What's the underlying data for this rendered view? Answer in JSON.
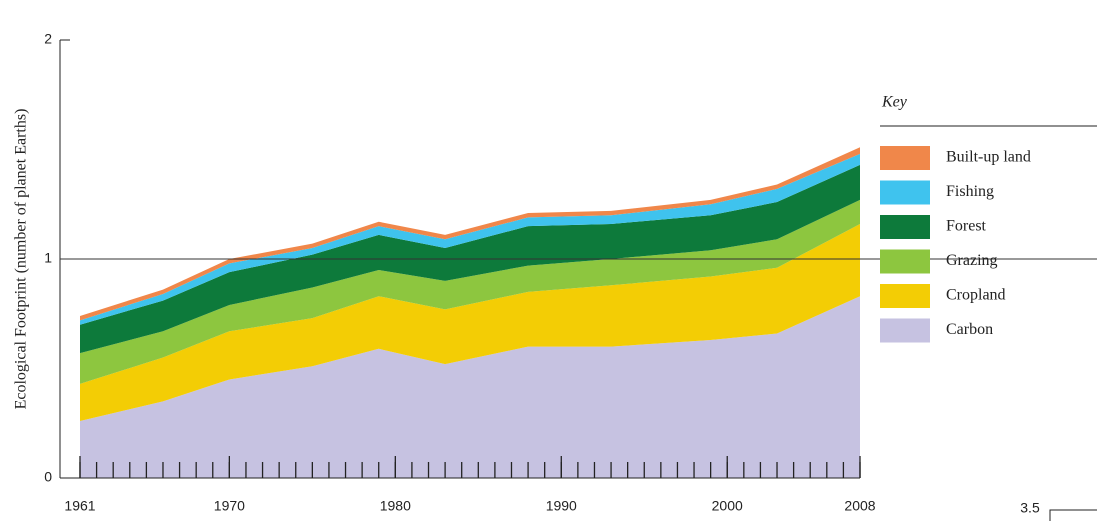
{
  "chart_data": {
    "type": "stacked_area",
    "y_label": "Ecological Footprint (number of planet Earths)",
    "x": [
      1961,
      1966,
      1970,
      1975,
      1979,
      1983,
      1988,
      1993,
      1999,
      2003,
      2008
    ],
    "series": [
      {
        "name": "Carbon",
        "color": "#c6c2e1",
        "values": [
          0.26,
          0.35,
          0.45,
          0.51,
          0.59,
          0.52,
          0.6,
          0.6,
          0.63,
          0.66,
          0.83
        ]
      },
      {
        "name": "Cropland",
        "color": "#f3cd05",
        "values": [
          0.17,
          0.2,
          0.22,
          0.22,
          0.24,
          0.25,
          0.25,
          0.28,
          0.29,
          0.3,
          0.33
        ]
      },
      {
        "name": "Grazing",
        "color": "#8dc63f",
        "values": [
          0.14,
          0.12,
          0.12,
          0.14,
          0.12,
          0.13,
          0.12,
          0.12,
          0.12,
          0.13,
          0.11
        ]
      },
      {
        "name": "Forest",
        "color": "#0d7a3b",
        "values": [
          0.13,
          0.14,
          0.15,
          0.15,
          0.16,
          0.15,
          0.18,
          0.16,
          0.16,
          0.17,
          0.16
        ]
      },
      {
        "name": "Fishing",
        "color": "#3fc3ee",
        "values": [
          0.02,
          0.03,
          0.04,
          0.03,
          0.04,
          0.04,
          0.04,
          0.04,
          0.05,
          0.06,
          0.05
        ]
      },
      {
        "name": "Built-up land",
        "color": "#f0874a",
        "values": [
          0.02,
          0.02,
          0.02,
          0.02,
          0.02,
          0.02,
          0.02,
          0.02,
          0.02,
          0.02,
          0.03
        ]
      }
    ],
    "xlim": [
      1961,
      2008
    ],
    "xticks": [
      1961,
      1970,
      1980,
      1990,
      2000,
      2008
    ],
    "ylim": [
      0,
      2
    ],
    "yticks": [
      0,
      1,
      2
    ],
    "reference_line": 1,
    "legend_title": "Key",
    "other_axis_label": "3.5"
  }
}
